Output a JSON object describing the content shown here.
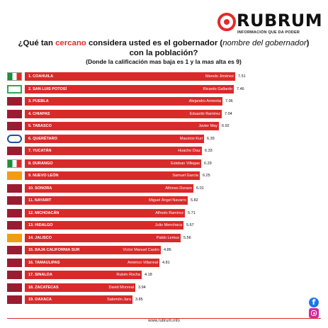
{
  "brand": {
    "name": "RUBRUM",
    "tagline": "INFORMACIÓN QUE DA PODER",
    "website": "www.rubrum.info"
  },
  "title": {
    "part1": "¿Qué tan ",
    "accent": "cercano",
    "part2": " considera usted es el gobernador (",
    "italic": "nombre del gobernador",
    "part3": ") con la población?"
  },
  "subtitle": "(Donde la calificación mas baja es 1 y la mas alta es 9)",
  "colors": {
    "bar": "#d92a2a",
    "accent": "#e02b2b"
  },
  "chart_data": {
    "type": "bar",
    "orientation": "horizontal",
    "xlim": [
      0,
      9
    ],
    "categories": [
      "1. COAHUILA",
      "2. SAN LUIS POTOSÍ",
      "3. PUEBLA",
      "4. CHIAPAS",
      "5. TABASCO",
      "6. QUERÉTARO",
      "7. YUCATÁN",
      "8. DURANGO",
      "9. NUEVO LEÓN",
      "10. SONORA",
      "11. NAYARIT",
      "12. MICHOACÁN",
      "13. HIDALGO",
      "14. JALISCO",
      "15. BAJA CALIFORNIA SUR",
      "16. TAMAULIPAS",
      "17. SINALOA",
      "18. ZACATECAS",
      "19. OAXACA"
    ],
    "governors": [
      "Manolo Jiménez",
      "Ricardo Gallardo",
      "Alejandro Armenta",
      "Eduardo Ramírez",
      "Javier May",
      "Mauricio Kuri",
      "Huacho Díaz",
      "Esteban Villegas",
      "Samuel García",
      "Alfonso Durazo",
      "Miguel Ángel Navarro",
      "Alfredo Ramírez",
      "Julio Menchaca",
      "Pablo Lemus",
      "Víctor Manuel Castro",
      "Américo Villarreal",
      "Rubén Rocha",
      "David Monreal",
      "Salomón Jara"
    ],
    "values": [
      7.51,
      7.46,
      7.06,
      7.04,
      6.92,
      6.39,
      6.33,
      6.29,
      6.25,
      6.01,
      5.82,
      5.71,
      5.67,
      5.56,
      4.86,
      4.81,
      4.18,
      3.94,
      3.85
    ],
    "party_icons": [
      "pri-logo",
      "pvem-logo",
      "morena-logo",
      "morena-logo",
      "morena-logo",
      "pan-logo",
      "morena-logo",
      "pri-logo",
      "mc-logo",
      "morena-logo",
      "morena-logo",
      "morena-logo",
      "morena-logo",
      "mc-logo",
      "morena-logo",
      "morena-logo",
      "morena-logo",
      "morena-logo",
      "morena-logo"
    ]
  }
}
